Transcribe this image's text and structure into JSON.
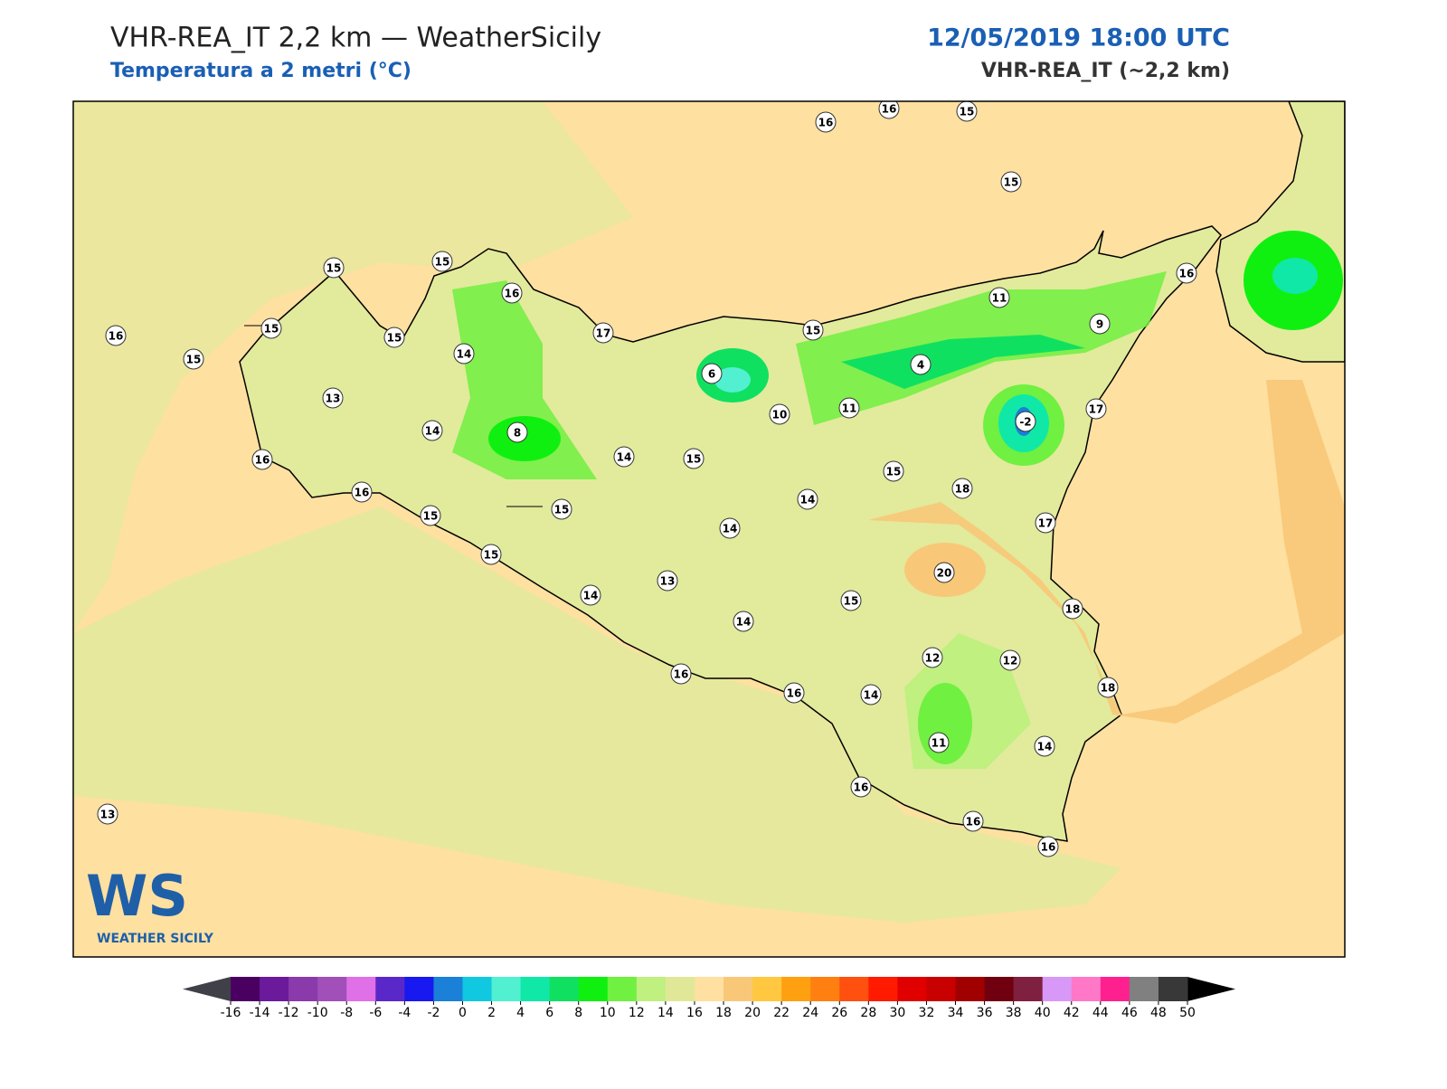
{
  "header": {
    "title": "VHR-REA_IT 2,2 km — WeatherSicily",
    "subtitle": "Temperatura a 2 metri (°C)",
    "datetime": "12/05/2019 18:00 UTC",
    "model": "VHR-REA_IT (~2,2 km)"
  },
  "stations": [
    16,
    16,
    15,
    15,
    15,
    15,
    16,
    16,
    15,
    15,
    15,
    14,
    17,
    15,
    11,
    9,
    16,
    6,
    4,
    13,
    10,
    11,
    -2,
    17,
    14,
    8,
    14,
    15,
    16,
    15,
    16,
    18,
    14,
    15,
    15,
    17,
    14,
    15,
    20,
    13,
    14,
    15,
    14,
    18,
    12,
    12,
    16,
    16,
    14,
    18,
    11,
    14,
    16,
    16,
    16,
    13
  ],
  "colorbar": {
    "ticks": [
      -16,
      -14,
      -12,
      -10,
      -8,
      -6,
      -4,
      -2,
      0,
      2,
      4,
      6,
      8,
      10,
      12,
      14,
      16,
      18,
      20,
      22,
      24,
      26,
      28,
      30,
      32,
      34,
      36,
      38,
      40,
      42,
      44,
      46,
      48,
      50
    ],
    "colors": [
      "#4a0060",
      "#6a1a9a",
      "#8a3aaa",
      "#a050b8",
      "#e070e8",
      "#5a28c8",
      "#1818f0",
      "#1a80d8",
      "#10c8e0",
      "#50f0d0",
      "#10e8a8",
      "#10e060",
      "#10f010",
      "#70f040",
      "#c0f080",
      "#e0e898",
      "#ffe0a0",
      "#f8c878",
      "#ffc840",
      "#ffa010",
      "#ff8010",
      "#ff5010",
      "#ff1a00",
      "#e00000",
      "#c80000",
      "#a00000",
      "#700010",
      "#802040",
      "#d898f8",
      "#ff78c8",
      "#ff2090",
      "#808080",
      "#383838"
    ],
    "under_color": "#404048",
    "over_color": "#000000"
  },
  "logo": {
    "mark": "WS",
    "name": "WEATHER SICILY"
  }
}
